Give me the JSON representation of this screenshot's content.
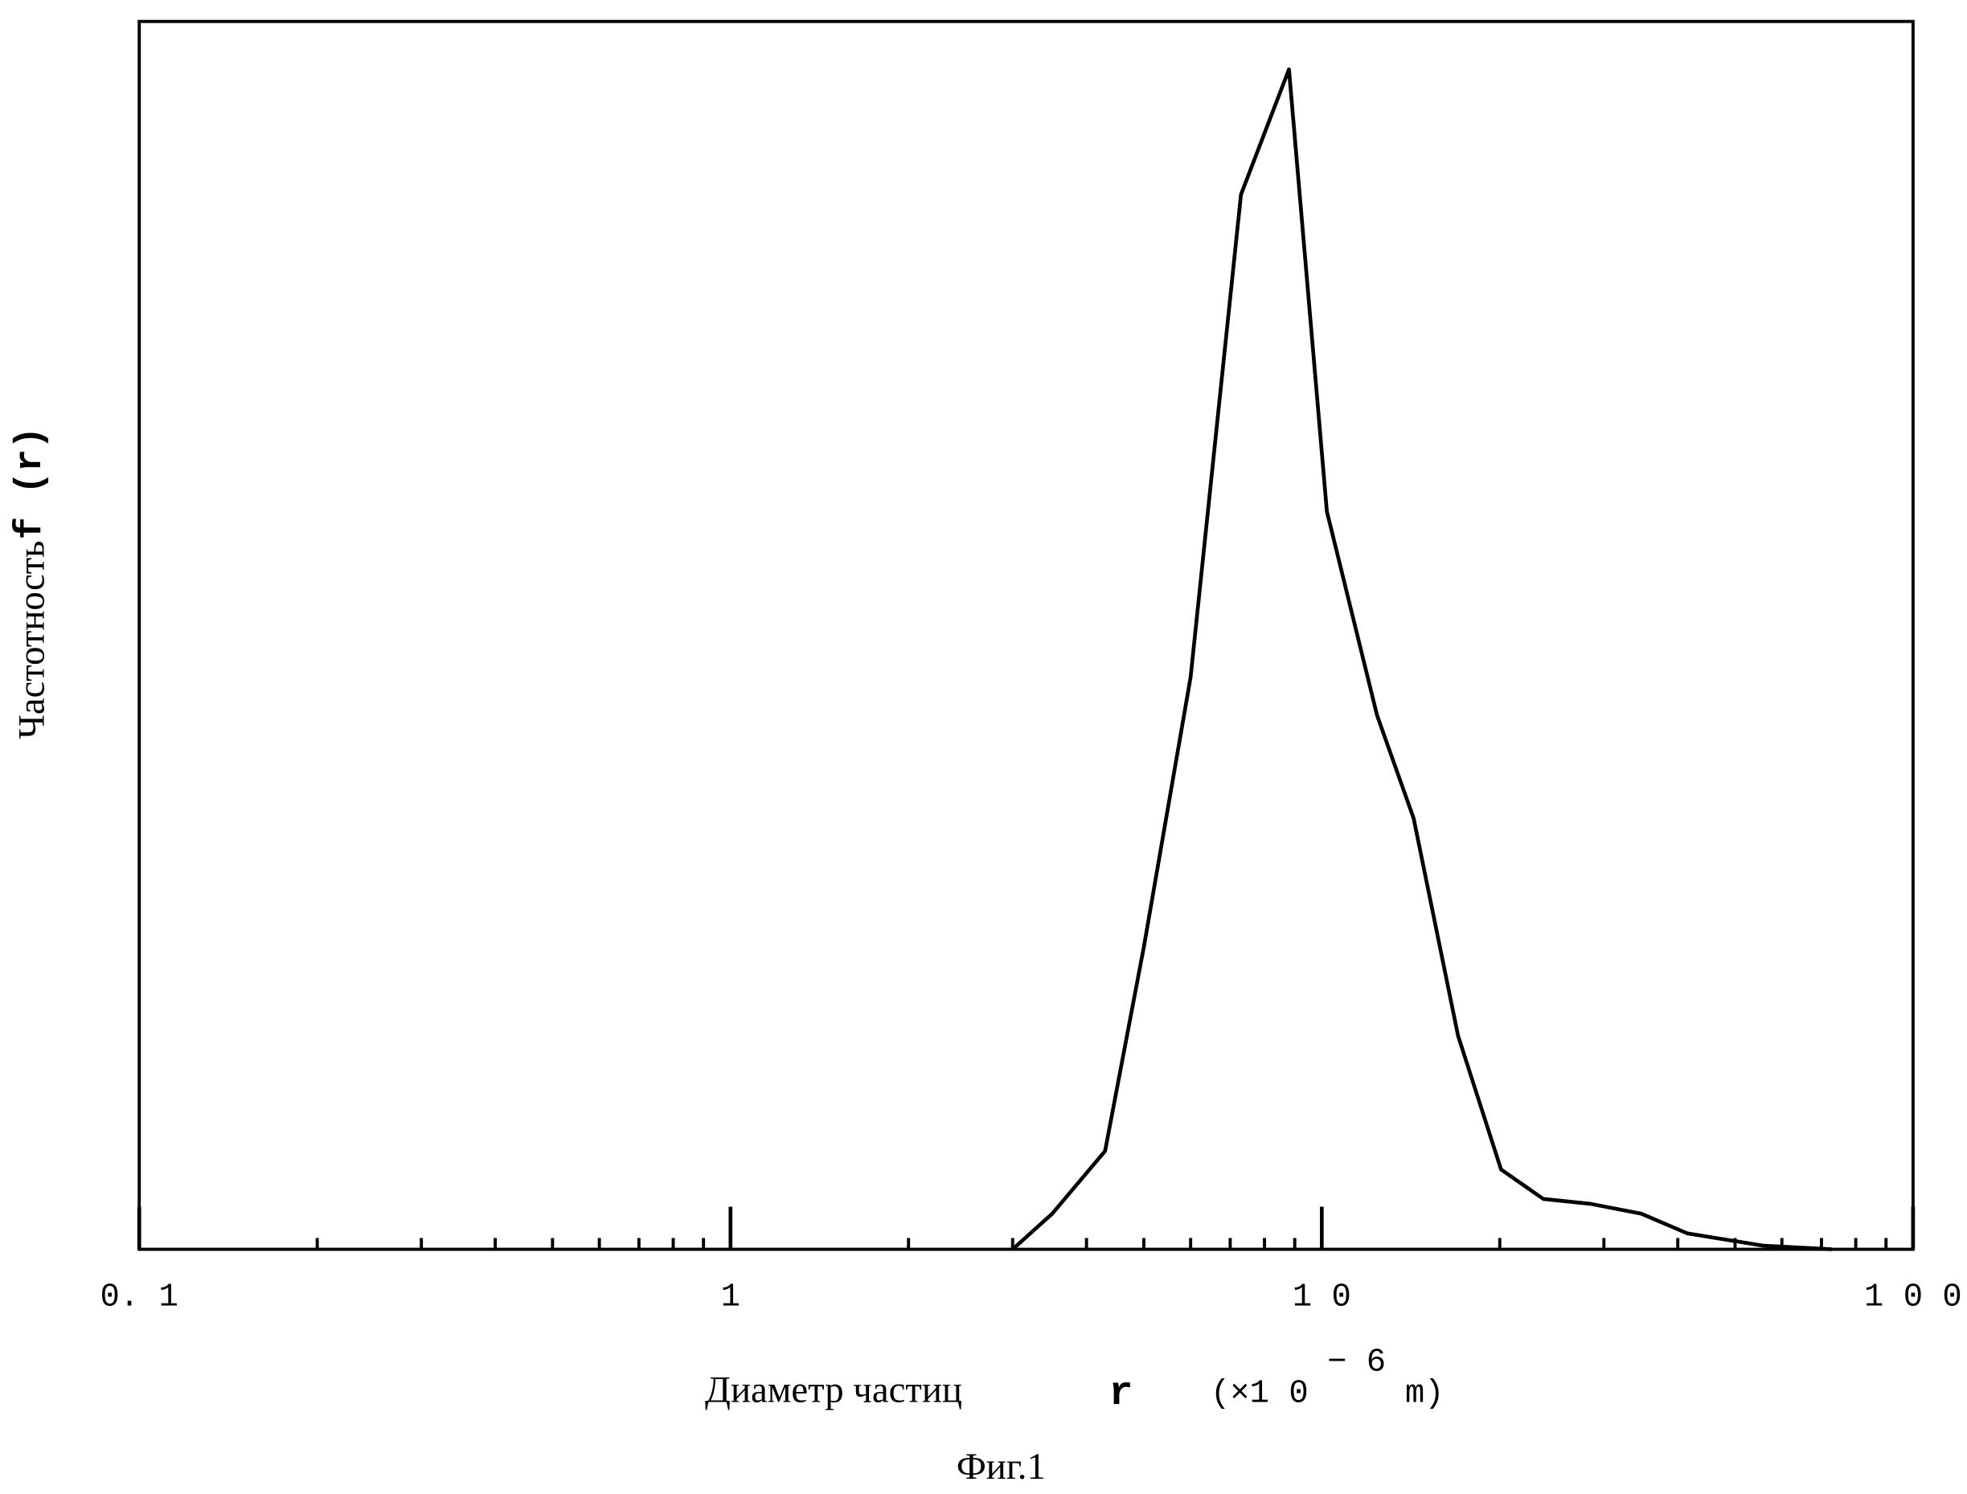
{
  "chart_data": {
    "type": "line",
    "caption": "Фиг.1",
    "ylabel": {
      "text": "Частотность",
      "symbol": "f (r)"
    },
    "xlabel": {
      "text": "Диаметр частиц",
      "symbol": "r",
      "unit_prefix": "(×1 0",
      "exponent": "− 6",
      "unit_suffix": "m)"
    },
    "xscale": "log",
    "xlim": [
      0.1,
      100
    ],
    "xticks": [
      {
        "value": 0.1,
        "label": "0. 1"
      },
      1,
      {
        "value": 10,
        "label": "1 0"
      },
      {
        "value": 100,
        "label": "1 0 0"
      }
    ],
    "xminorticks": [
      0.2,
      0.3,
      0.4,
      0.5,
      0.6,
      0.7,
      0.8,
      0.9,
      2,
      3,
      4,
      5,
      6,
      7,
      8,
      9,
      20,
      30,
      40,
      50,
      60,
      70,
      80,
      90
    ],
    "ylim": [
      0,
      1
    ],
    "grid": false,
    "series": [
      {
        "color": "#000000",
        "x": [
          3.0,
          3.5,
          4.3,
          5.0,
          6.0,
          7.3,
          8.8,
          10.2,
          12.4,
          14.3,
          17,
          20.1,
          23.7,
          28.5,
          34.7,
          41.5,
          55.7,
          72.8
        ],
        "values": [
          0,
          0.029,
          0.08,
          0.246,
          0.466,
          0.859,
          0.961,
          0.601,
          0.435,
          0.351,
          0.174,
          0.065,
          0.041,
          0.037,
          0.029,
          0.013,
          0.003,
          0
        ]
      }
    ]
  }
}
